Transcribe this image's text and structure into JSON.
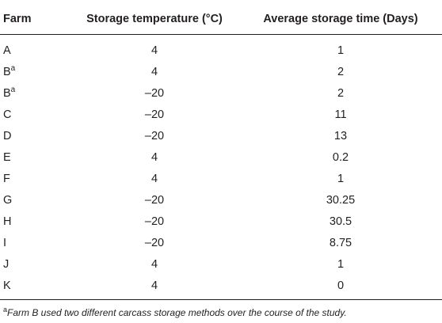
{
  "table": {
    "headers": {
      "farm": "Farm",
      "storage_temperature": "Storage temperature (°C)",
      "average_storage_time": "Average storage time (Days)"
    },
    "rows": [
      {
        "farm": "A",
        "sup": "",
        "temp": "4",
        "time": "1"
      },
      {
        "farm": "B",
        "sup": "a",
        "temp": "4",
        "time": "2"
      },
      {
        "farm": "B",
        "sup": "a",
        "temp": "–20",
        "time": "2"
      },
      {
        "farm": "C",
        "sup": "",
        "temp": "–20",
        "time": "11"
      },
      {
        "farm": "D",
        "sup": "",
        "temp": "–20",
        "time": "13"
      },
      {
        "farm": "E",
        "sup": "",
        "temp": "4",
        "time": "0.2"
      },
      {
        "farm": "F",
        "sup": "",
        "temp": "4",
        "time": "1"
      },
      {
        "farm": "G",
        "sup": "",
        "temp": "–20",
        "time": "30.25"
      },
      {
        "farm": "H",
        "sup": "",
        "temp": "–20",
        "time": "30.5"
      },
      {
        "farm": "I",
        "sup": "",
        "temp": "–20",
        "time": "8.75"
      },
      {
        "farm": "J",
        "sup": "",
        "temp": "4",
        "time": "1"
      },
      {
        "farm": "K",
        "sup": "",
        "temp": "4",
        "time": "0"
      }
    ]
  },
  "footnote": {
    "marker": "a",
    "text": "Farm B used two different carcass storage methods over the course of the study."
  }
}
